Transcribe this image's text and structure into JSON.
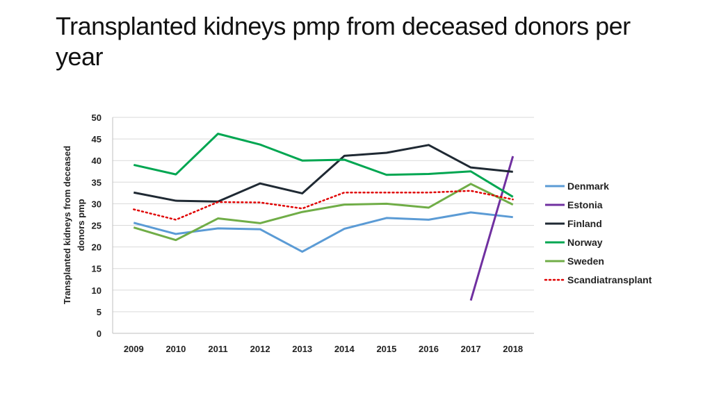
{
  "title": "Transplanted kidneys pmp from deceased donors per year",
  "chart_data": {
    "type": "line",
    "title": "Transplanted kidneys pmp from deceased donors per year",
    "xlabel": "",
    "ylabel_line1": "Transplanted kidneys from deceased",
    "ylabel_line2": "donors pmp",
    "categories": [
      "2009",
      "2010",
      "2011",
      "2012",
      "2013",
      "2014",
      "2015",
      "2016",
      "2017",
      "2018"
    ],
    "ylim": [
      0,
      50
    ],
    "yticks": [
      "0",
      "5",
      "10",
      "15",
      "20",
      "25",
      "30",
      "35",
      "40",
      "45",
      "50"
    ],
    "grid": true,
    "legend_position": "right",
    "series": [
      {
        "name": "Denmark",
        "color": "#5B9BD5",
        "dash": "solid",
        "values": [
          25.6,
          23.0,
          24.3,
          24.1,
          18.9,
          24.2,
          26.7,
          26.3,
          28.0,
          26.9
        ]
      },
      {
        "name": "Estonia",
        "color": "#7030A0",
        "dash": "solid",
        "values": [
          null,
          null,
          null,
          null,
          null,
          null,
          null,
          null,
          7.6,
          41.0
        ]
      },
      {
        "name": "Finland",
        "color": "#1F2933",
        "dash": "solid",
        "values": [
          32.6,
          30.7,
          30.5,
          34.7,
          32.4,
          41.1,
          41.8,
          43.6,
          38.4,
          37.4
        ]
      },
      {
        "name": "Norway",
        "color": "#00A651",
        "dash": "solid",
        "values": [
          39.0,
          36.8,
          46.2,
          43.7,
          40.0,
          40.2,
          36.7,
          36.9,
          37.5,
          31.6
        ]
      },
      {
        "name": "Sweden",
        "color": "#70AD47",
        "dash": "solid",
        "values": [
          24.5,
          21.6,
          26.6,
          25.5,
          28.1,
          29.8,
          30.0,
          29.1,
          34.6,
          29.8
        ]
      },
      {
        "name": "Scandiatransplant",
        "color": "#E00000",
        "dash": "dotted",
        "values": [
          28.7,
          26.3,
          30.4,
          30.3,
          28.9,
          32.6,
          32.6,
          32.6,
          33.0,
          31.0
        ]
      }
    ]
  }
}
